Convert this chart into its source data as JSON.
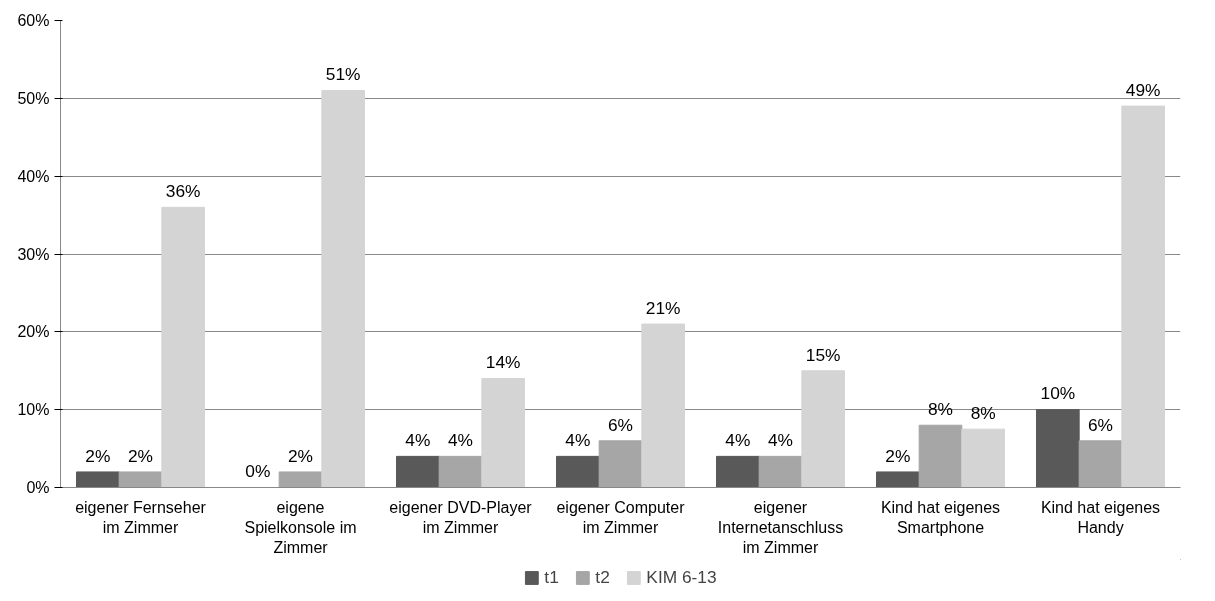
{
  "chart_data": {
    "type": "bar",
    "categories": [
      "eigener Fernseher im Zimmer",
      "eigene Spielkonsole im Zimmer",
      "eigener DVD-Player im Zimmer",
      "eigener Computer im Zimmer",
      "eigener Internetanschluss im Zimmer",
      "Kind hat eigenes Smartphone",
      "Kind hat eigenes Handy"
    ],
    "series": [
      {
        "name": "t1",
        "color": "#595959",
        "values": [
          2,
          0,
          4,
          4,
          4,
          2,
          10
        ],
        "value_labels": [
          "2%",
          "0%",
          "4%",
          "4%",
          "4%",
          "2%",
          "10%"
        ]
      },
      {
        "name": "t2",
        "color": "#a6a6a6",
        "values": [
          2,
          2,
          4,
          6,
          4,
          8,
          6
        ],
        "value_labels": [
          "2%",
          "2%",
          "4%",
          "6%",
          "4%",
          "8%",
          "6%"
        ]
      },
      {
        "name": "KIM 6-13",
        "color": "#d4d4d4",
        "values": [
          36,
          51,
          14,
          21,
          15,
          7.5,
          49
        ],
        "value_labels": [
          "36%",
          "51%",
          "14%",
          "21%",
          "15%",
          "8%",
          "49%"
        ]
      }
    ],
    "ylim": [
      0,
      60
    ],
    "yticks": [
      {
        "value": 0,
        "label": "0%"
      },
      {
        "value": 10,
        "label": "10%"
      },
      {
        "value": 20,
        "label": "20%"
      },
      {
        "value": 30,
        "label": "30%"
      },
      {
        "value": 40,
        "label": "40%"
      },
      {
        "value": 50,
        "label": "50%"
      },
      {
        "value": 60,
        "label": "60%"
      }
    ],
    "grid": "y",
    "legend": "bottom"
  }
}
